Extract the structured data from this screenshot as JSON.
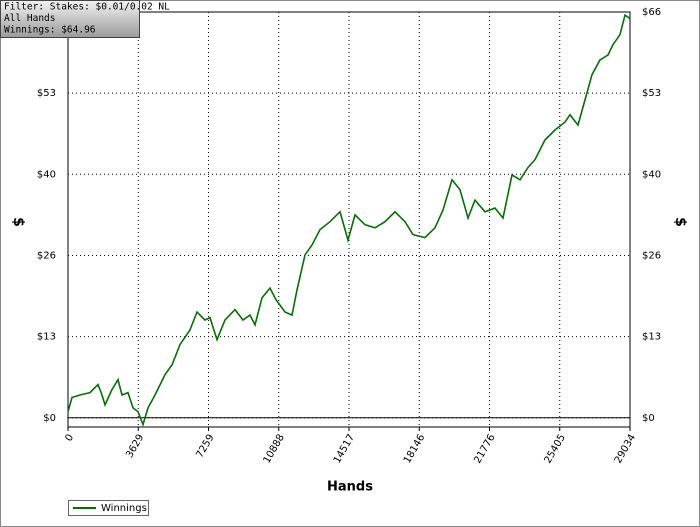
{
  "chart_data": {
    "type": "line",
    "info": [
      "Filter: Stakes: $0.01/0.02 NL",
      "All Hands",
      "Winnings: $64.96"
    ],
    "x_label": "Hands",
    "y_label": "$",
    "y2_label": "$",
    "xlim": [
      0,
      29034
    ],
    "xticks": [
      0,
      3629,
      7259,
      10888,
      14517,
      18146,
      21776,
      25405,
      29034
    ],
    "ylim": [
      -1.5,
      66
    ],
    "yticks": [
      {
        "value": 0,
        "label": "$0"
      },
      {
        "value": 13.2,
        "label": "$13"
      },
      {
        "value": 26.4,
        "label": "$26"
      },
      {
        "value": 39.6,
        "label": "$40"
      },
      {
        "value": 52.8,
        "label": "$53"
      },
      {
        "value": 66,
        "label": "$66"
      }
    ],
    "grid": true,
    "legend": "bottom-left",
    "x": [
      0,
      207,
      620,
      1137,
      1550,
      1756,
      1911,
      2273,
      2583,
      2790,
      3100,
      3358,
      3616,
      3875,
      4133,
      4494,
      5011,
      5373,
      5786,
      6303,
      6664,
      7078,
      7336,
      7697,
      8111,
      8627,
      9041,
      9402,
      9661,
      10022,
      10435,
      10745,
      11210,
      11572,
      11830,
      12243,
      12605,
      13018,
      13535,
      14052,
      14465,
      14827,
      15343,
      15860,
      16377,
      16893,
      17410,
      17823,
      18443,
      18960,
      19373,
      19838,
      20251,
      20664,
      21026,
      21542,
      22059,
      22473,
      22937,
      23351,
      23764,
      24126,
      24642,
      25159,
      25676,
      25934,
      26348,
      26709,
      27070,
      27484,
      27897,
      28155,
      28517,
      28775,
      29034
    ],
    "series": [
      {
        "name": "Winnings",
        "color": "#0b6b0b",
        "values": [
          1.0,
          3.3,
          3.7,
          4.1,
          5.4,
          3.7,
          2.1,
          4.6,
          6.2,
          3.7,
          4.1,
          1.6,
          1.0,
          -1.1,
          1.6,
          3.7,
          7.0,
          8.6,
          11.9,
          14.3,
          17.2,
          15.9,
          16.3,
          12.7,
          15.9,
          17.6,
          15.9,
          16.7,
          15.1,
          19.5,
          21.1,
          19.2,
          17.2,
          16.7,
          20.8,
          26.5,
          28.1,
          30.6,
          31.9,
          33.5,
          28.9,
          33.0,
          31.4,
          30.9,
          31.9,
          33.5,
          31.9,
          29.8,
          29.3,
          30.9,
          33.8,
          38.7,
          37.1,
          32.5,
          35.4,
          33.5,
          34.1,
          32.5,
          39.5,
          38.7,
          40.7,
          42.0,
          45.2,
          46.8,
          48.1,
          49.3,
          47.6,
          51.7,
          55.8,
          58.2,
          59.0,
          60.7,
          62.3,
          65.5,
          64.96
        ]
      }
    ]
  }
}
